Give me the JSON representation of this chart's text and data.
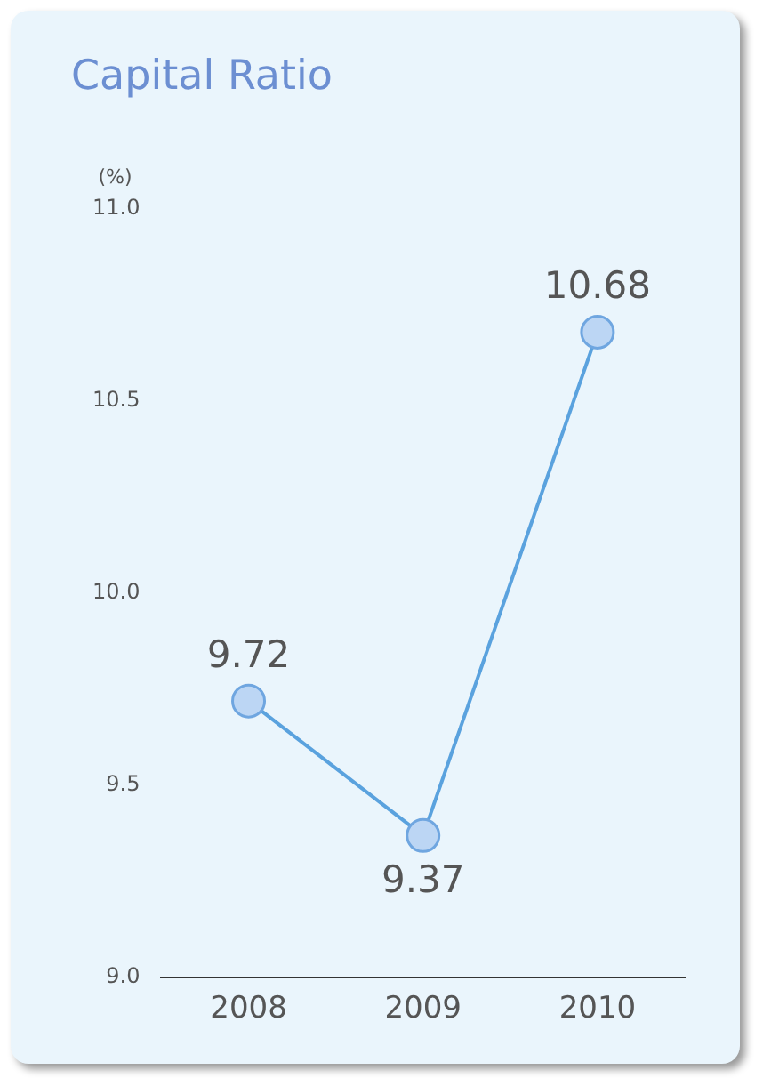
{
  "chart_data": {
    "type": "line",
    "title": "Capital Ratio",
    "ylabel": "(%)",
    "categories": [
      "2008",
      "2009",
      "2010"
    ],
    "series": [
      {
        "color": "#5aa2de",
        "values": [
          9.72,
          9.37,
          10.68
        ]
      }
    ],
    "ylim": [
      9.0,
      11.0
    ],
    "yticks": [
      {
        "value": 9,
        "label": "9.0"
      },
      {
        "value": 9.5,
        "label": "9.5"
      },
      {
        "value": 10,
        "label": "10.0"
      },
      {
        "value": 10.5,
        "label": "10.5"
      },
      {
        "value": 11,
        "label": "11.0"
      }
    ],
    "grid": false,
    "legend": false,
    "marker": "circle",
    "line_style": "solid",
    "data_labels": true
  }
}
